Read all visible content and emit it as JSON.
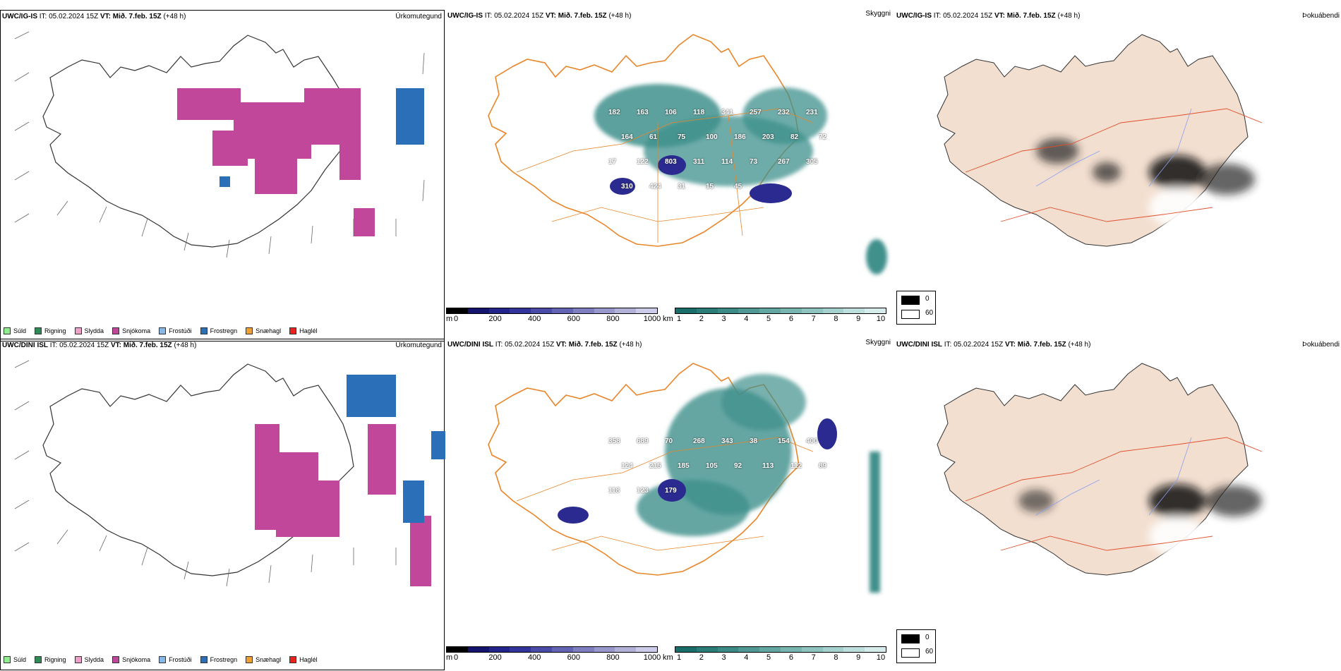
{
  "rows": [
    {
      "model": "UWC/IG-IS",
      "it_label": "IT:",
      "it_value": "05.02.2024 15Z",
      "vt_label": "VT:",
      "vt_value": "Mið. 7.feb. 15Z",
      "lead": "(+48 h)",
      "labels_cloud": [
        "182",
        "163",
        "106",
        "118",
        "341",
        "257",
        "232",
        "231",
        "164",
        "61",
        "75",
        "100",
        "186",
        "203",
        "82",
        "72",
        "17",
        "122",
        "803",
        "311",
        "114",
        "73",
        "267",
        "305",
        "310",
        "424",
        "31",
        "15",
        "45"
      ]
    },
    {
      "model": "UWC/DINI ISL",
      "it_label": "IT:",
      "it_value": "05.02.2024 15Z",
      "vt_label": "VT:",
      "vt_value": "Mið. 7.feb. 15Z",
      "lead": "(+48 h)",
      "labels_cloud": [
        "358",
        "689",
        "70",
        "268",
        "343",
        "38",
        "154",
        "400",
        "124",
        "215",
        "185",
        "105",
        "92",
        "113",
        "112",
        "89",
        "118",
        "123",
        "179"
      ]
    }
  ],
  "titles": {
    "precip": "Úrkomutegund",
    "cloud": "Skyggni",
    "fog": "Þokuábendi"
  },
  "precip_legend": [
    {
      "label": "Súld",
      "color": "#90ee90"
    },
    {
      "label": "Rigning",
      "color": "#2e8b57"
    },
    {
      "label": "Slydda",
      "color": "#f0a0c8"
    },
    {
      "label": "Snjókoma",
      "color": "#c0479a"
    },
    {
      "label": "Frostúði",
      "color": "#87b8e8"
    },
    {
      "label": "Frostregn",
      "color": "#2a6fb8"
    },
    {
      "label": "Snæhagl",
      "color": "#f0a030"
    },
    {
      "label": "Haglél",
      "color": "#e8231b"
    }
  ],
  "cloud_base_scale": {
    "unit": "m",
    "ticks": [
      "0",
      "200",
      "400",
      "600",
      "800",
      "1000"
    ],
    "colors": [
      "#000000",
      "#14146e",
      "#23238c",
      "#33339c",
      "#4a4aa8",
      "#6464b4",
      "#7e7ec0",
      "#9898cc",
      "#b2b2d8",
      "#ccccea"
    ]
  },
  "visibility_scale": {
    "unit": "km",
    "ticks": [
      "1",
      "2",
      "3",
      "4",
      "5",
      "6",
      "7",
      "8",
      "9",
      "10"
    ],
    "colors": [
      "#1a6e6a",
      "#2b7c77",
      "#3c8a85",
      "#4f9893",
      "#63a7a2",
      "#78b5b1",
      "#8ec3bf",
      "#a5d1ce",
      "#bddfdd",
      "#d6eceb"
    ]
  },
  "fog_legend": [
    {
      "value": "0",
      "color": "#000000"
    },
    {
      "value": "60",
      "color": "#ffffff"
    }
  ],
  "colors": {
    "land_fill": "#f3dfd0",
    "road": "#e8862a",
    "fog_road": "#e0502e",
    "river": "#8aa0f0",
    "coast": "#000000",
    "snow": "#c0479a",
    "frost": "#2a6fb8",
    "cloud_teal": "#3f908c",
    "cloud_dark": "#2a2a90"
  }
}
